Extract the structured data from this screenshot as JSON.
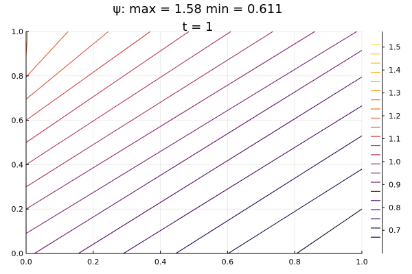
{
  "chart_data": {
    "type": "contour",
    "title": "ψ: max = 1.58 min = 0.611",
    "subtitle": "t = 1",
    "xlabel": "",
    "ylabel": "",
    "xlim": [
      0,
      1
    ],
    "ylim": [
      0,
      1
    ],
    "grid": true,
    "x_ticks": [
      "0.0",
      "0.2",
      "0.4",
      "0.6",
      "0.8",
      "1.0"
    ],
    "y_ticks": [
      "0.0",
      "0.2",
      "0.4",
      "0.6",
      "0.8",
      "1.0"
    ],
    "colorbar": {
      "ticks": [
        "0.7",
        "0.8",
        "0.9",
        "1.0",
        "1.1",
        "1.2",
        "1.3",
        "1.4",
        "1.5"
      ],
      "range": [
        0.611,
        1.58
      ],
      "placement": "right",
      "colormap": "inferno"
    },
    "contour_lines": [
      {
        "level": 0.67,
        "x0": 0.806,
        "y0": 0,
        "x1": 1,
        "y1": 0.2
      },
      {
        "level": 0.71,
        "x0": 0.602,
        "y0": 0,
        "x1": 1,
        "y1": 0.38
      },
      {
        "level": 0.75,
        "x0": 0.446,
        "y0": 0,
        "x1": 1,
        "y1": 0.53
      },
      {
        "level": 0.79,
        "x0": 0.29,
        "y0": 0,
        "x1": 1,
        "y1": 0.665
      },
      {
        "level": 0.83,
        "x0": 0.156,
        "y0": 0,
        "x1": 1,
        "y1": 0.795
      },
      {
        "level": 0.87,
        "x0": 0.025,
        "y0": 0,
        "x1": 1,
        "y1": 0.915
      },
      {
        "level": 0.91,
        "x0": 0,
        "y0": 0.09,
        "x1": 0.985,
        "y1": 1
      },
      {
        "level": 0.95,
        "x0": 0,
        "y0": 0.2,
        "x1": 0.86,
        "y1": 1
      },
      {
        "level": 0.99,
        "x0": 0,
        "y0": 0.3,
        "x1": 0.735,
        "y1": 1
      },
      {
        "level": 1.03,
        "x0": 0,
        "y0": 0.4,
        "x1": 0.61,
        "y1": 1
      },
      {
        "level": 1.07,
        "x0": 0,
        "y0": 0.5,
        "x1": 0.485,
        "y1": 1
      },
      {
        "level": 1.11,
        "x0": 0,
        "y0": 0.6,
        "x1": 0.37,
        "y1": 1
      },
      {
        "level": 1.15,
        "x0": 0,
        "y0": 0.695,
        "x1": 0.245,
        "y1": 1
      },
      {
        "level": 1.19,
        "x0": 0,
        "y0": 0.795,
        "x1": 0.125,
        "y1": 1
      },
      {
        "level": 1.23,
        "x0": 0,
        "y0": 0.893,
        "x1": 0.005,
        "y1": 1
      }
    ],
    "colors": {
      "0.67": "#0d0829",
      "0.71": "#1f0c48",
      "0.75": "#330a5f",
      "0.79": "#460b6a",
      "0.83": "#57106e",
      "0.87": "#6a176e",
      "0.91": "#7c1d6d",
      "0.95": "#8e2469",
      "0.99": "#a02a63",
      "1.03": "#b1325a",
      "1.07": "#c13a50",
      "1.11": "#cf4446",
      "1.15": "#dc5039",
      "1.19": "#e65d2f",
      "1.23": "#f06d25",
      "1.27": "#f57d15",
      "1.31": "#f98e09",
      "1.35": "#fb9f07",
      "1.39": "#fbb00f",
      "1.43": "#f9c11f",
      "1.47": "#f5d236",
      "1.51": "#f2e24c"
    }
  }
}
